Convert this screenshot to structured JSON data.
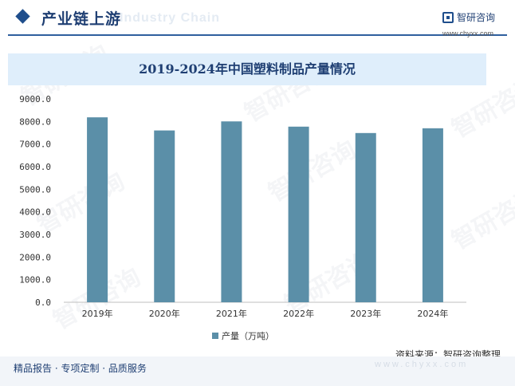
{
  "header": {
    "title": "产业链上游",
    "ghost_text": "Industry Chain",
    "logo_name": "智研咨询",
    "logo_url": "www.chyxx.com"
  },
  "watermark_text": "智研咨询",
  "chart_title": "2019-2024年中国塑料制品产量情况",
  "chart_data": {
    "type": "bar",
    "title": "2019-2024年中国塑料制品产量情况",
    "categories": [
      "2019年",
      "2020年",
      "2021年",
      "2022年",
      "2023年",
      "2024年"
    ],
    "series": [
      {
        "name": "产量（万吨）",
        "values": [
          8184,
          7603,
          8004,
          7772,
          7489,
          7700
        ]
      }
    ],
    "ylim": [
      0,
      9000
    ],
    "yticks": [
      "0.0",
      "1000.0",
      "2000.0",
      "3000.0",
      "4000.0",
      "5000.0",
      "6000.0",
      "7000.0",
      "8000.0",
      "9000.0"
    ],
    "grid": false,
    "legend_position": "bottom",
    "color": "#5b8fa8"
  },
  "source": "资料来源：智研咨询整理",
  "footer": {
    "text": "精品报告 · 专项定制 · 品质服务",
    "ghost_url": "www.chyxx.com"
  }
}
